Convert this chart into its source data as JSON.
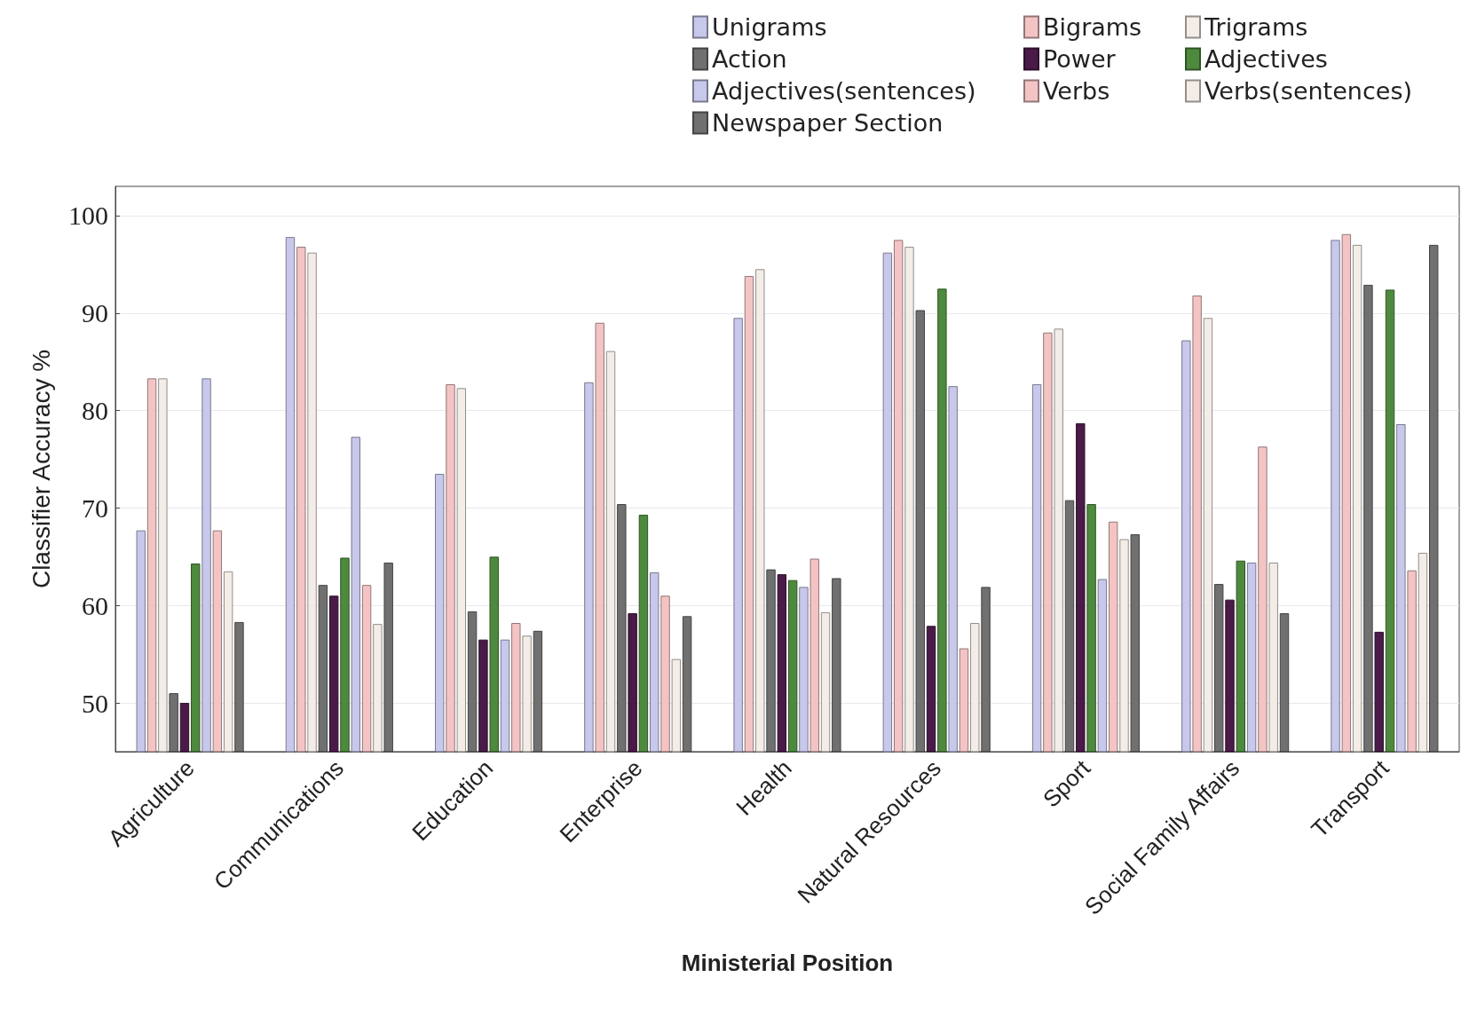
{
  "chart_data": {
    "type": "bar",
    "xlabel": "Ministerial Position",
    "ylabel": "Classifier Accuracy %",
    "categories": [
      "Agriculture",
      "Communications",
      "Education",
      "Enterprise",
      "Health",
      "Natural Resources",
      "Sport",
      "Social Family Affairs",
      "Transport"
    ],
    "series": [
      {
        "name": "Unigrams",
        "color": "#c8c8ec",
        "values": [
          67.7,
          97.8,
          73.5,
          82.9,
          89.5,
          96.2,
          82.7,
          87.2,
          97.5
        ]
      },
      {
        "name": "Bigrams",
        "color": "#f4c4c4",
        "values": [
          83.3,
          96.8,
          82.7,
          89.0,
          93.8,
          97.5,
          88.0,
          91.8,
          98.1
        ]
      },
      {
        "name": "Trigrams",
        "color": "#f4ece6",
        "values": [
          83.3,
          96.2,
          82.3,
          86.1,
          94.5,
          96.8,
          88.4,
          89.5,
          97.0
        ]
      },
      {
        "name": "Action",
        "color": "#707070",
        "values": [
          51.0,
          62.1,
          59.4,
          70.4,
          63.7,
          90.3,
          70.8,
          62.2,
          92.9
        ]
      },
      {
        "name": "Power",
        "color": "#4a1a48",
        "values": [
          50.0,
          61.0,
          56.5,
          59.2,
          63.2,
          57.9,
          78.7,
          60.6,
          57.3
        ]
      },
      {
        "name": "Adjectives",
        "color": "#4e8a3e",
        "values": [
          64.3,
          64.9,
          65.0,
          69.3,
          62.6,
          92.5,
          70.4,
          64.6,
          92.4
        ]
      },
      {
        "name": "Adjectives(sentences)",
        "color": "#c8c8ec",
        "values": [
          83.3,
          77.3,
          56.5,
          63.4,
          61.9,
          82.5,
          62.7,
          64.4,
          78.6
        ]
      },
      {
        "name": "Verbs",
        "color": "#f4c4c4",
        "values": [
          67.7,
          62.1,
          58.2,
          61.0,
          64.8,
          55.6,
          68.6,
          76.3,
          63.6
        ]
      },
      {
        "name": "Verbs(sentences)",
        "color": "#f4ece6",
        "values": [
          63.5,
          58.1,
          56.9,
          54.5,
          59.3,
          58.2,
          66.8,
          64.4,
          65.4
        ]
      },
      {
        "name": "Newspaper Section",
        "color": "#707070",
        "values": [
          58.3,
          64.4,
          57.4,
          58.9,
          62.8,
          61.9,
          67.3,
          59.2,
          97.0
        ]
      }
    ],
    "ylim": [
      45,
      103
    ],
    "yticks": [
      50,
      60,
      70,
      80,
      90,
      100
    ],
    "grid": "y",
    "legend": "top right"
  }
}
